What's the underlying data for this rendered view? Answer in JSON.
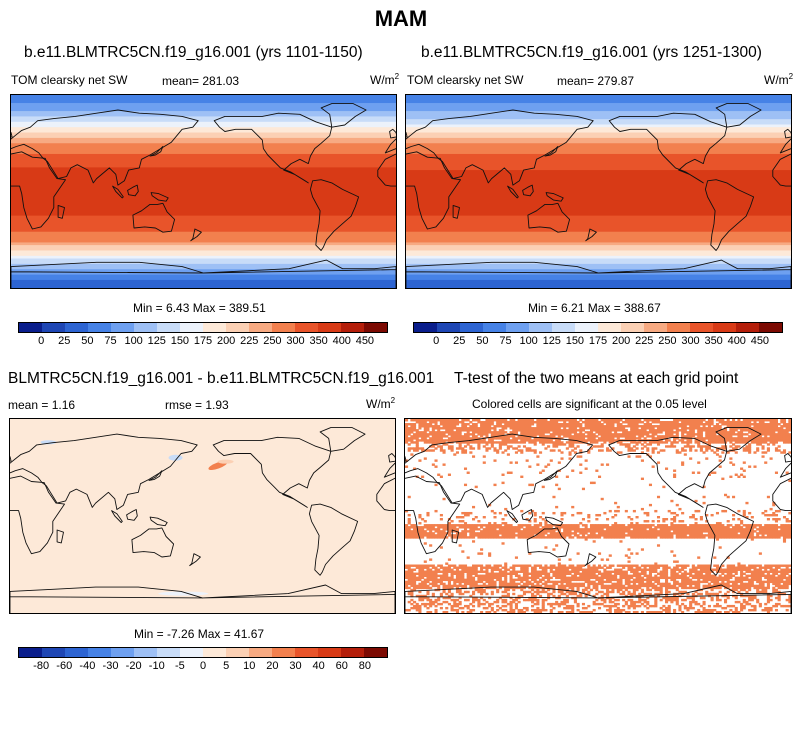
{
  "figure": {
    "title": "MAM"
  },
  "panels": [
    {
      "title": "b.e11.BLMTRC5CN.f19_g16.001 (yrs 1101-1150)",
      "variable": "TOM clearsky net SW",
      "mean_label": "mean= 281.03",
      "units_base": "W/m",
      "units_exp": "2",
      "minmax_label": "Min =   6.43 Max = 389.51"
    },
    {
      "title": "b.e11.BLMTRC5CN.f19_g16.001 (yrs 1251-1300)",
      "variable": "TOM clearsky net SW",
      "mean_label": "mean= 279.87",
      "units_base": "W/m",
      "units_exp": "2",
      "minmax_label": "Min =   6.21 Max = 388.67"
    },
    {
      "title": "BLMTRC5CN.f19_g16.001 - b.e11.BLMTRC5CN.f19_g16.001",
      "mean_label": "mean =   1.16",
      "rmse_label": "rmse =   1.93",
      "units_base": "W/m",
      "units_exp": "2",
      "minmax_label": "Min =  -7.26 Max =  41.67"
    },
    {
      "title": "T-test of the two means at each grid point",
      "subtitle": "Colored cells are significant at the 0.05 level"
    }
  ],
  "colorbars": {
    "sw": {
      "labels": [
        "0",
        "25",
        "50",
        "75",
        "100",
        "125",
        "150",
        "175",
        "200",
        "225",
        "250",
        "300",
        "350",
        "400",
        "450"
      ],
      "colors": [
        "#0a1e8c",
        "#1e46b4",
        "#2d64d2",
        "#4682e6",
        "#6ea0f0",
        "#9ec0f5",
        "#c8dcf8",
        "#ecf2fb",
        "#fde9d8",
        "#fbd0b4",
        "#f7aa82",
        "#f2804e",
        "#e8542a",
        "#d83a16",
        "#b41e0a",
        "#7c0a02"
      ]
    },
    "diff": {
      "labels": [
        "-80",
        "-60",
        "-40",
        "-30",
        "-20",
        "-10",
        "-5",
        "0",
        "5",
        "10",
        "20",
        "30",
        "40",
        "60",
        "80"
      ],
      "colors": [
        "#0a1e8c",
        "#1e46b4",
        "#2d64d2",
        "#4682e6",
        "#6ea0f0",
        "#9ec0f5",
        "#c8dcf8",
        "#ecf2fb",
        "#fde9d8",
        "#fbd0b4",
        "#f7aa82",
        "#f2804e",
        "#e8542a",
        "#d83a16",
        "#b41e0a",
        "#7c0a02"
      ]
    }
  },
  "chart_data": [
    {
      "type": "heatmap",
      "title": "b.e11.BLMTRC5CN.f19_g16.001 (yrs 1101-1150)",
      "variable": "TOM clearsky net SW",
      "units": "W/m2",
      "mean": 281.03,
      "min": 6.43,
      "max": 389.51,
      "levels": [
        0,
        25,
        50,
        75,
        100,
        125,
        150,
        175,
        200,
        225,
        250,
        300,
        350,
        400,
        450
      ],
      "lat_profile": {
        "lat": [
          -90,
          -80,
          -70,
          -60,
          -50,
          -40,
          -30,
          -20,
          -10,
          0,
          10,
          20,
          30,
          40,
          50,
          60,
          70,
          80,
          90
        ],
        "value": [
          30,
          60,
          110,
          170,
          230,
          290,
          330,
          360,
          375,
          380,
          375,
          355,
          320,
          280,
          230,
          170,
          120,
          80,
          60
        ]
      }
    },
    {
      "type": "heatmap",
      "title": "b.e11.BLMTRC5CN.f19_g16.001 (yrs 1251-1300)",
      "variable": "TOM clearsky net SW",
      "units": "W/m2",
      "mean": 279.87,
      "min": 6.21,
      "max": 388.67,
      "levels": [
        0,
        25,
        50,
        75,
        100,
        125,
        150,
        175,
        200,
        225,
        250,
        300,
        350,
        400,
        450
      ],
      "lat_profile": {
        "lat": [
          -90,
          -80,
          -70,
          -60,
          -50,
          -40,
          -30,
          -20,
          -10,
          0,
          10,
          20,
          30,
          40,
          50,
          60,
          70,
          80,
          90
        ],
        "value": [
          28,
          58,
          108,
          168,
          228,
          288,
          328,
          358,
          373,
          378,
          373,
          353,
          318,
          278,
          228,
          168,
          118,
          78,
          58
        ]
      }
    },
    {
      "type": "heatmap",
      "title": "BLMTRC5CN.f19_g16.001 - b.e11.BLMTRC5CN.f19_g16.001",
      "units": "W/m2",
      "mean": 1.16,
      "rmse": 1.93,
      "min": -7.26,
      "max": 41.67,
      "levels": [
        -80,
        -60,
        -40,
        -30,
        -20,
        -10,
        -5,
        0,
        5,
        10,
        20,
        30,
        40,
        60,
        80
      ]
    },
    {
      "type": "heatmap",
      "title": "T-test of the two means at each grid point",
      "annotation": "Colored cells are significant at the 0.05 level",
      "significance_level": 0.05
    }
  ]
}
